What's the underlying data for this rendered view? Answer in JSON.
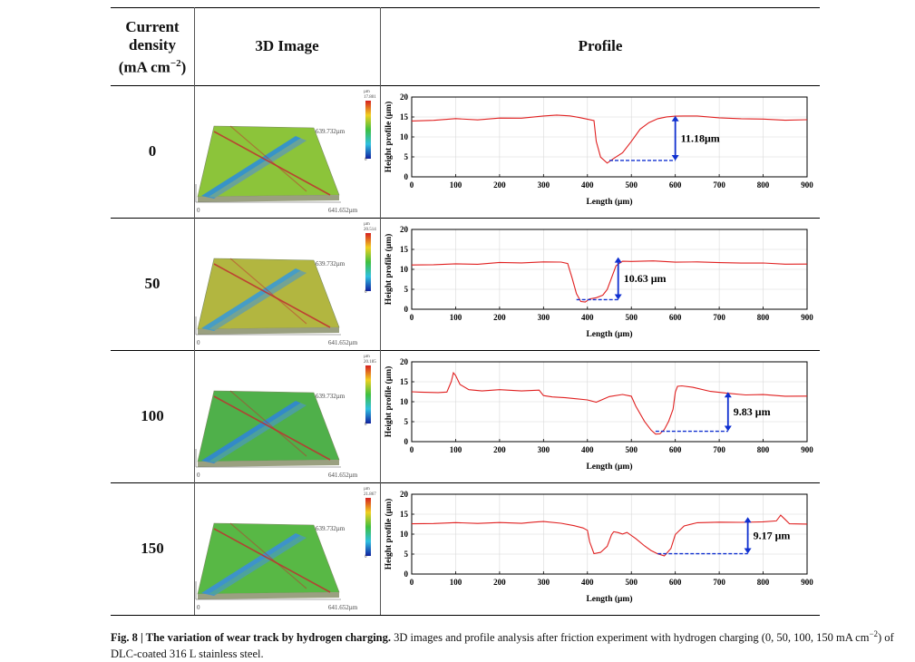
{
  "header": {
    "col1_line1": "Current",
    "col1_line2": "density",
    "col1_line3": "(mA cm",
    "col1_sup": "−2",
    "col1_close": ")",
    "col2": "3D Image",
    "col3": "Profile"
  },
  "image_scale": {
    "unit": "µm",
    "y_extent": "639.732µm",
    "x_extent": "641.652µm",
    "origin": "0"
  },
  "rows": [
    {
      "density": "0",
      "scale_max": "17.801",
      "depth_label": "11.18μm"
    },
    {
      "density": "50",
      "scale_max": "20.514",
      "depth_label": "10.63 μm"
    },
    {
      "density": "100",
      "scale_max": "20.185",
      "depth_label": "9.83 μm"
    },
    {
      "density": "150",
      "scale_max": "21.867",
      "depth_label": "9.17 μm"
    }
  ],
  "chart_data": [
    {
      "type": "line",
      "xlabel": "Length (μm)",
      "ylabel": "Height profile (μm)",
      "xlim": [
        0,
        900
      ],
      "ylim": [
        0,
        20
      ],
      "xticks": [
        0,
        100,
        200,
        300,
        400,
        500,
        600,
        700,
        800,
        900
      ],
      "yticks": [
        0,
        5,
        10,
        15,
        20
      ],
      "grid": true,
      "x": [
        0,
        50,
        100,
        150,
        200,
        250,
        300,
        330,
        360,
        380,
        400,
        415,
        420,
        430,
        445,
        460,
        480,
        500,
        520,
        540,
        560,
        580,
        600,
        620,
        650,
        700,
        750,
        800,
        850,
        900
      ],
      "y": [
        14,
        14.2,
        14.5,
        14.4,
        14.6,
        14.8,
        15.2,
        15.6,
        15.2,
        14.8,
        14.5,
        14,
        9,
        5,
        3.5,
        4.5,
        6,
        9,
        12,
        13.5,
        14.5,
        15.1,
        15.3,
        15.2,
        15.2,
        14.8,
        14.6,
        14.4,
        14.3,
        14.2
      ],
      "depth": 11.18,
      "depth_x": [
        450,
        600
      ]
    },
    {
      "type": "line",
      "xlabel": "Length (μm)",
      "ylabel": "Height profile (μm)",
      "xlim": [
        0,
        900
      ],
      "ylim": [
        0,
        20
      ],
      "xticks": [
        0,
        100,
        200,
        300,
        400,
        500,
        600,
        700,
        800,
        900
      ],
      "yticks": [
        0,
        5,
        10,
        15,
        20
      ],
      "grid": true,
      "x": [
        0,
        50,
        100,
        150,
        200,
        250,
        300,
        340,
        355,
        365,
        375,
        385,
        395,
        405,
        420,
        435,
        445,
        455,
        465,
        480,
        500,
        550,
        600,
        650,
        700,
        750,
        800,
        850,
        900
      ],
      "y": [
        11.1,
        11.2,
        11.3,
        11.4,
        11.6,
        11.7,
        11.8,
        11.9,
        11.5,
        8,
        4,
        2,
        1.8,
        2.5,
        3,
        3.5,
        5,
        8,
        11,
        12,
        12.1,
        12,
        11.9,
        11.8,
        11.7,
        11.6,
        11.5,
        11.4,
        11.2
      ],
      "depth": 10.63,
      "depth_x": [
        375,
        470
      ]
    },
    {
      "type": "line",
      "xlabel": "Length (μm)",
      "ylabel": "Height profile (μm)",
      "xlim": [
        0,
        900
      ],
      "ylim": [
        0,
        20
      ],
      "xticks": [
        0,
        100,
        200,
        300,
        400,
        500,
        600,
        700,
        800,
        900
      ],
      "yticks": [
        0,
        5,
        10,
        15,
        20
      ],
      "grid": true,
      "x": [
        0,
        20,
        40,
        60,
        80,
        90,
        95,
        100,
        110,
        130,
        160,
        200,
        250,
        290,
        300,
        320,
        350,
        400,
        420,
        450,
        480,
        500,
        510,
        530,
        545,
        555,
        565,
        575,
        585,
        595,
        600,
        605,
        615,
        640,
        680,
        720,
        760,
        800,
        850,
        900
      ],
      "y": [
        12.5,
        12.3,
        12.3,
        12.4,
        12.5,
        15,
        17.3,
        16.5,
        14.2,
        13,
        12.8,
        12.9,
        12.8,
        12.8,
        11.5,
        11.3,
        11,
        10.5,
        10,
        11.2,
        11.8,
        11.5,
        9,
        5,
        3,
        2,
        2,
        3,
        5,
        8,
        12.5,
        13.8,
        14,
        13.5,
        12.7,
        12,
        11.8,
        11.7,
        11.5,
        11.3
      ],
      "depth": 9.83,
      "depth_x": [
        555,
        720
      ]
    },
    {
      "type": "line",
      "xlabel": "Length (μm)",
      "ylabel": "Height profile (μm)",
      "xlim": [
        0,
        900
      ],
      "ylim": [
        0,
        20
      ],
      "xticks": [
        0,
        100,
        200,
        300,
        400,
        500,
        600,
        700,
        800,
        900
      ],
      "yticks": [
        0,
        5,
        10,
        15,
        20
      ],
      "grid": true,
      "x": [
        0,
        50,
        100,
        150,
        200,
        250,
        280,
        300,
        340,
        370,
        390,
        400,
        405,
        415,
        430,
        445,
        455,
        460,
        470,
        480,
        490,
        510,
        530,
        545,
        560,
        575,
        590,
        600,
        620,
        650,
        700,
        750,
        800,
        830,
        840,
        850,
        860,
        900
      ],
      "y": [
        12.6,
        12.7,
        12.8,
        12.8,
        12.8,
        12.8,
        12.9,
        13.1,
        12.8,
        12,
        11.5,
        11,
        8,
        5,
        5.5,
        7,
        10,
        10.5,
        10.3,
        10,
        10.5,
        9,
        7,
        6,
        5,
        4.5,
        6.5,
        10,
        12,
        12.8,
        13,
        13,
        13,
        13.3,
        14.8,
        13.8,
        12.7,
        12.4
      ],
      "depth": 9.17,
      "depth_x": [
        560,
        765
      ]
    }
  ],
  "caption": {
    "label": "Fig. 8 | The variation of wear track by hydrogen charging.",
    "text_1": " 3D images and profile analysis after friction experiment with hydrogen charging (0, 50, 100, 150 mA cm",
    "sup": "−2",
    "text_2": ") of DLC-coated 316 L stainless steel."
  },
  "colors": {
    "profile_line": "#e02020",
    "depth_arrow": "#1030d0",
    "depth_dash": "#1030d0"
  }
}
